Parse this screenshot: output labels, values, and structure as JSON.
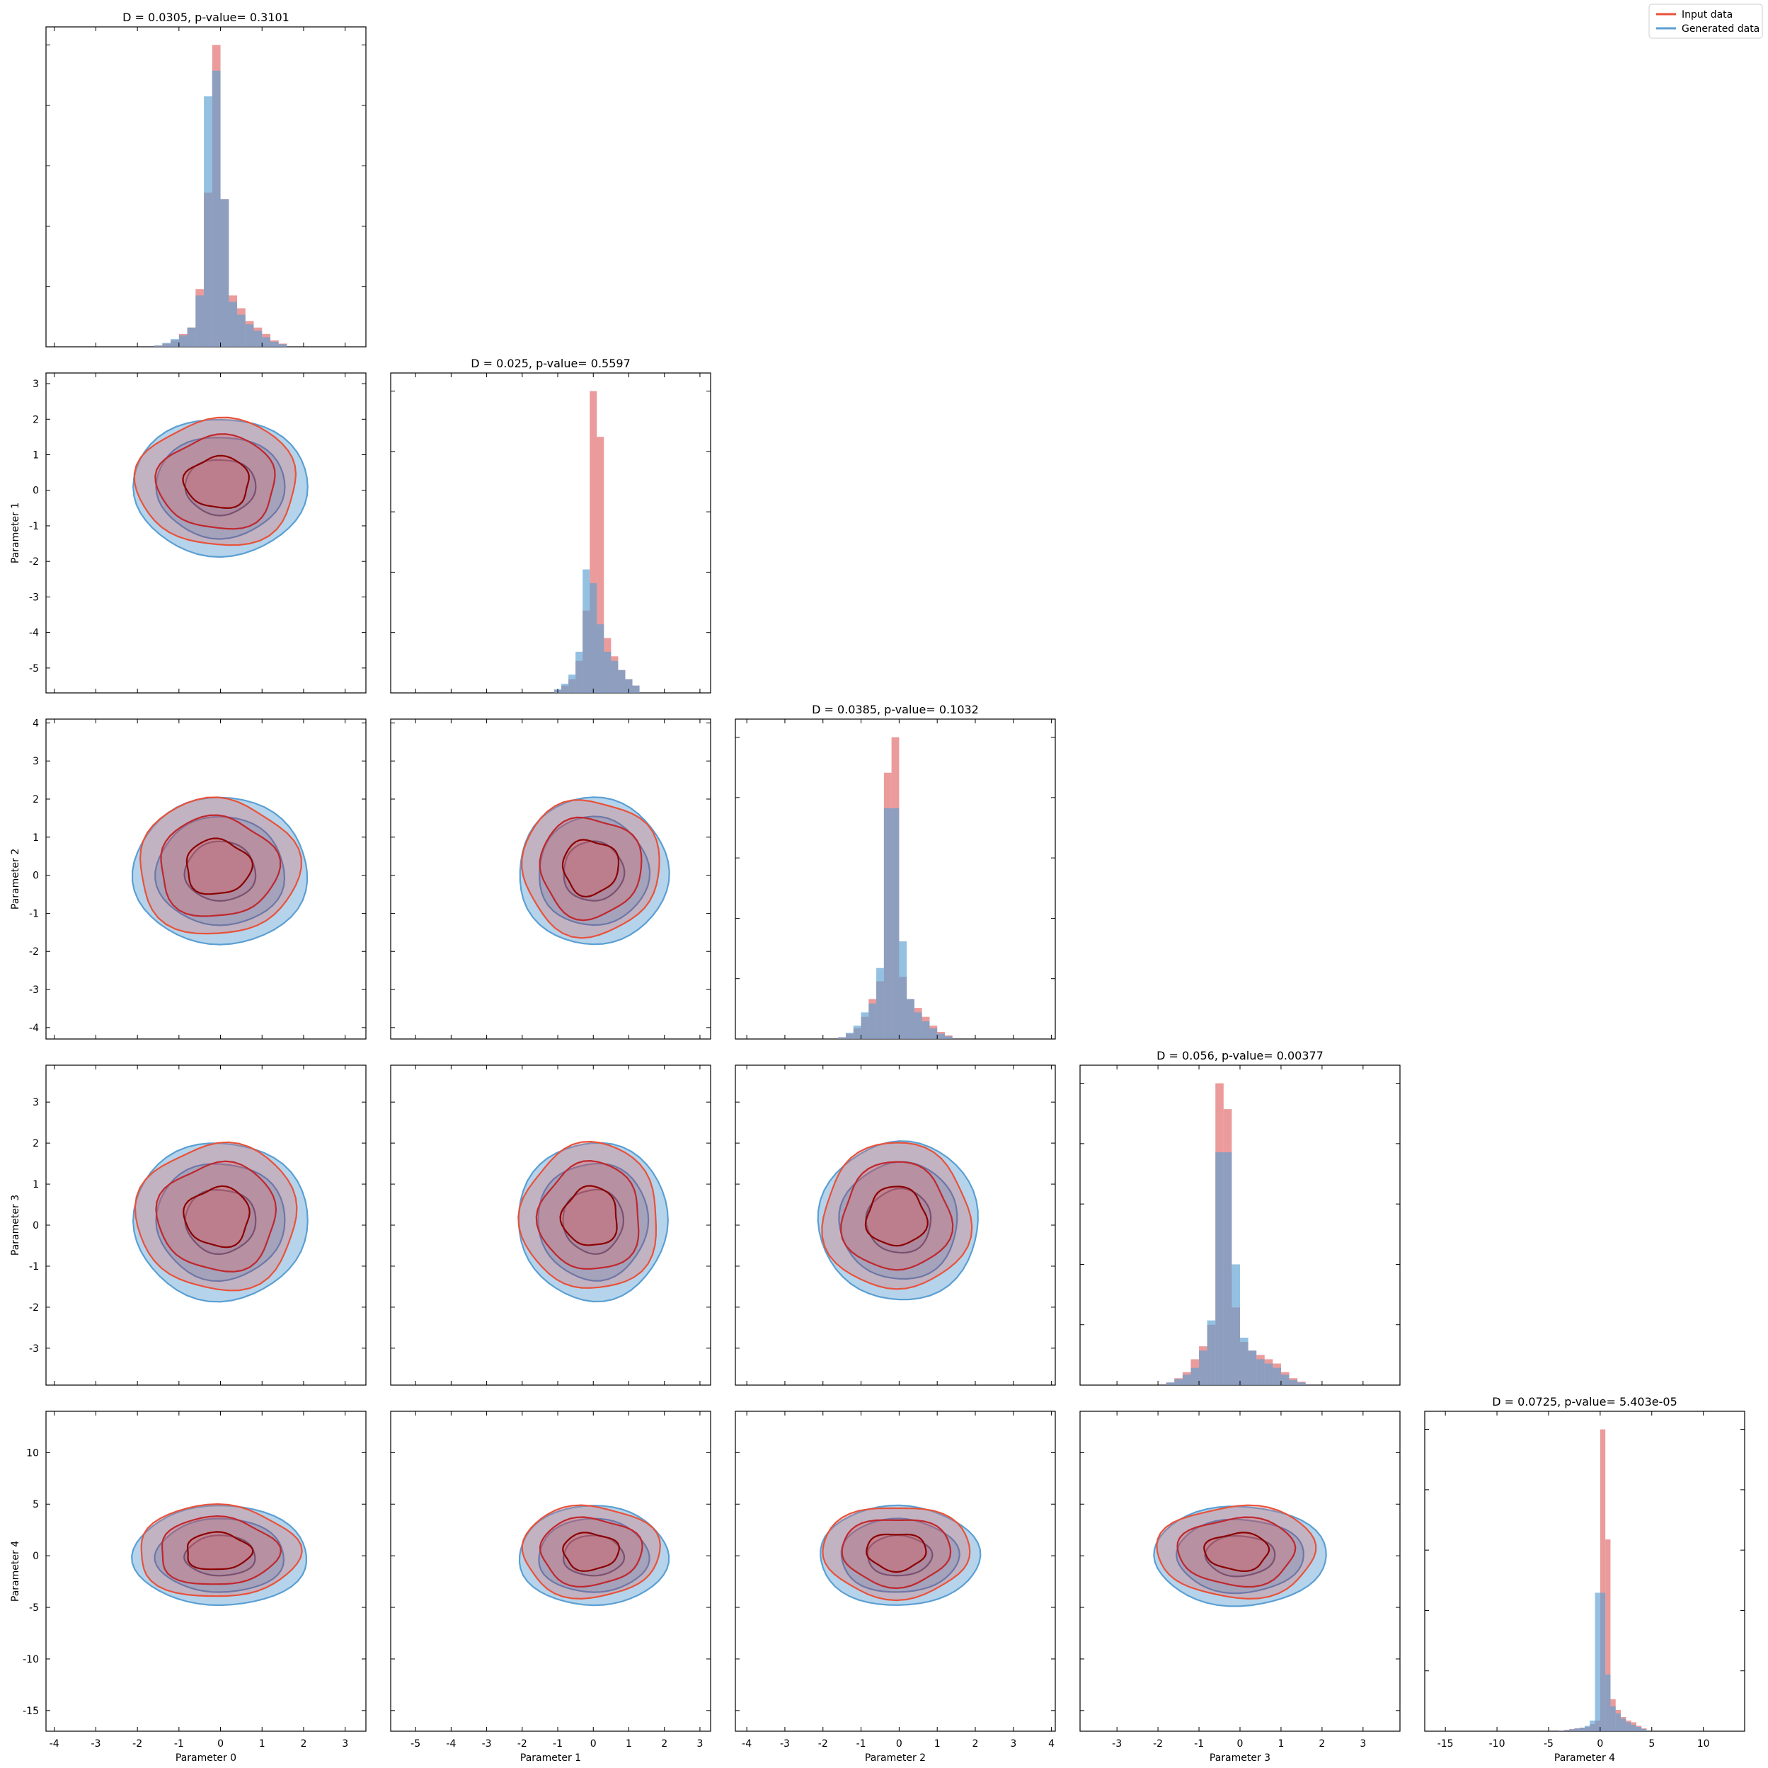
{
  "legend": {
    "placement": "top-right",
    "items": [
      {
        "label": "Input data",
        "color": "#e8523a"
      },
      {
        "label": "Generated data",
        "color": "#5b9fd3"
      }
    ]
  },
  "colors": {
    "input_hist": "#e06666",
    "generated_hist": "#5b9fd3",
    "input_line": "#e8523a",
    "input_dark": "#8b0000",
    "generated_line": "#3d7fc0",
    "generated_dark": "#0d3b7a"
  },
  "chart_data": {
    "type": "corner",
    "parameters": [
      "Parameter 0",
      "Parameter 1",
      "Parameter 2",
      "Parameter 3",
      "Parameter 4"
    ],
    "diagonal_titles": [
      "D = 0.0305, p-value= 0.3101",
      "D = 0.025, p-value= 0.5597",
      "D = 0.0385, p-value= 0.1032",
      "D = 0.056, p-value= 0.00377",
      "D = 0.0725, p-value= 5.403e-05"
    ],
    "x_ranges": [
      [
        -4.2,
        3.5
      ],
      [
        -5.7,
        3.3
      ],
      [
        -4.3,
        4.1
      ],
      [
        -3.9,
        3.9
      ],
      [
        -17,
        14
      ]
    ],
    "x_ticks": [
      [
        -4,
        -3,
        -2,
        -1,
        0,
        1,
        2,
        3
      ],
      [
        -5,
        -4,
        -3,
        -2,
        -1,
        0,
        1,
        2,
        3
      ],
      [
        -4,
        -3,
        -2,
        -1,
        0,
        1,
        2,
        3,
        4
      ],
      [
        -3,
        -2,
        -1,
        0,
        1,
        2,
        3
      ],
      [
        -15,
        -10,
        -5,
        0,
        5,
        10
      ]
    ],
    "y_ranges": [
      null,
      [
        -5.7,
        3.3
      ],
      [
        -4.3,
        4.1
      ],
      [
        -3.9,
        3.9
      ],
      [
        -17,
        14
      ]
    ],
    "y_ticks": [
      null,
      [
        -5,
        -4,
        -3,
        -2,
        -1,
        0,
        1,
        2,
        3
      ],
      [
        -4,
        -3,
        -2,
        -1,
        0,
        1,
        2,
        3,
        4
      ],
      [
        -3,
        -2,
        -1,
        0,
        1,
        2,
        3
      ],
      [
        -15,
        -10,
        -5,
        0,
        5,
        10
      ]
    ],
    "histograms": [
      {
        "bin_width": 0.2,
        "input": [
          0.02,
          0.05,
          0.1,
          0.2,
          0.3,
          0.9,
          2.4,
          4.7,
          2.3,
          0.8,
          0.6,
          0.4,
          0.3,
          0.2,
          0.1,
          0.05
        ],
        "generated": [
          0.02,
          0.06,
          0.12,
          0.18,
          0.3,
          0.8,
          3.9,
          4.3,
          2.3,
          0.7,
          0.5,
          0.35,
          0.25,
          0.15,
          0.08,
          0.04
        ],
        "start": -1.6
      },
      {
        "bin_width": 0.2,
        "input": [
          0.03,
          0.08,
          0.15,
          0.35,
          0.9,
          3.3,
          2.8,
          0.6,
          0.4,
          0.25,
          0.15,
          0.08
        ],
        "generated": [
          0.04,
          0.1,
          0.2,
          0.45,
          1.35,
          1.2,
          0.75,
          0.45,
          0.35,
          0.25,
          0.15,
          0.08
        ],
        "start": -1.1
      },
      {
        "bin_width": 0.2,
        "input": [
          0.02,
          0.06,
          0.12,
          0.25,
          0.45,
          0.65,
          3.0,
          3.4,
          0.7,
          0.45,
          0.35,
          0.25,
          0.15,
          0.08,
          0.04
        ],
        "generated": [
          0.02,
          0.07,
          0.15,
          0.3,
          0.4,
          0.8,
          2.6,
          2.6,
          1.1,
          0.45,
          0.3,
          0.2,
          0.12,
          0.06,
          0.03
        ],
        "start": -1.6
      },
      {
        "bin_width": 0.2,
        "input": [
          0.03,
          0.08,
          0.15,
          0.3,
          0.45,
          0.7,
          3.5,
          3.2,
          0.9,
          0.5,
          0.4,
          0.35,
          0.3,
          0.25,
          0.15,
          0.08,
          0.04
        ],
        "generated": [
          0.03,
          0.07,
          0.12,
          0.2,
          0.4,
          0.75,
          2.7,
          2.7,
          1.4,
          0.55,
          0.4,
          0.3,
          0.25,
          0.2,
          0.12,
          0.06,
          0.03
        ],
        "start": -1.8
      },
      {
        "bin_width": 0.5,
        "input": [
          0.02,
          0.04,
          0.06,
          0.08,
          0.1,
          0.12,
          0.2,
          0.3,
          8.5,
          5.4,
          0.9,
          0.6,
          0.4,
          0.3,
          0.25,
          0.15,
          0.08
        ],
        "generated": [
          0.02,
          0.03,
          0.05,
          0.08,
          0.1,
          0.15,
          0.3,
          3.9,
          3.9,
          1.6,
          0.7,
          0.5,
          0.35,
          0.25,
          0.18,
          0.12,
          0.06
        ],
        "start": -4.0
      }
    ],
    "contour_levels": [
      "inner",
      "middle",
      "outer"
    ]
  }
}
